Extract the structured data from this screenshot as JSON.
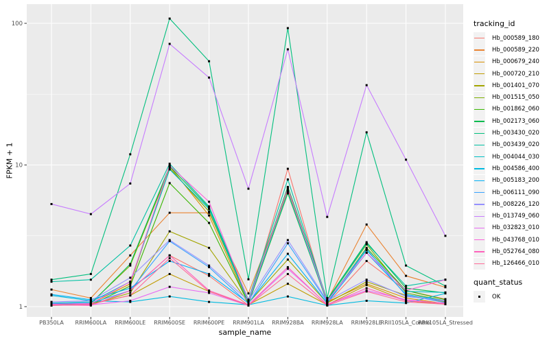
{
  "chart_data": {
    "type": "line",
    "xlabel": "sample_name",
    "ylabel": "FPKM + 1",
    "y_scale": "log10",
    "y_ticks": [
      1,
      10,
      100
    ],
    "y_minor_ticks": [
      3.1623,
      31.623
    ],
    "grid": true,
    "panel_bg": "#EBEBEB",
    "grid_color": "#FFFFFF",
    "tick_label_color": "#4D4D4D",
    "point_marker": "black-square",
    "categories": [
      "PB350LA",
      "RRIM600LA",
      "RRIM600LE",
      "RRIM600SE",
      "RRIM600PE",
      "RRIM901LA",
      "RRIM928BA",
      "RRIM928LA",
      "RRIM928LE",
      "RRII105LA_Control",
      "RRII105LA_Stressed"
    ],
    "series": [
      {
        "name": "Hb_000589_180",
        "color": "#F8766D",
        "values": [
          1.05,
          1.02,
          1.3,
          2.3,
          1.65,
          1.02,
          9.4,
          1.05,
          2.1,
          1.3,
          1.13
        ]
      },
      {
        "name": "Hb_000589_220",
        "color": "#EA8331",
        "values": [
          1.32,
          1.15,
          2.3,
          4.6,
          4.6,
          1.24,
          6.5,
          1.1,
          3.8,
          1.65,
          1.37
        ]
      },
      {
        "name": "Hb_000679_240",
        "color": "#D89000",
        "values": [
          1.05,
          1.05,
          1.45,
          9.8,
          4.4,
          1.05,
          6.6,
          1.08,
          1.45,
          1.15,
          1.05
        ]
      },
      {
        "name": "Hb_000720_210",
        "color": "#C09B00",
        "values": [
          1.02,
          1.05,
          1.2,
          1.7,
          1.28,
          1.03,
          1.45,
          1.03,
          1.42,
          1.1,
          1.04
        ]
      },
      {
        "name": "Hb_001401_070",
        "color": "#A3A500",
        "values": [
          1.03,
          1.04,
          1.25,
          3.4,
          2.6,
          1.06,
          2.15,
          1.06,
          1.5,
          1.2,
          1.08
        ]
      },
      {
        "name": "Hb_001515_050",
        "color": "#7CAE00",
        "values": [
          1.04,
          1.06,
          1.95,
          9.5,
          4.7,
          1.08,
          6.9,
          1.1,
          2.75,
          1.25,
          1.1
        ]
      },
      {
        "name": "Hb_001862_060",
        "color": "#39B600",
        "values": [
          1.02,
          1.03,
          1.4,
          7.45,
          3.9,
          1.05,
          6.3,
          1.07,
          2.6,
          1.3,
          1.12
        ]
      },
      {
        "name": "Hb_002173_060",
        "color": "#00BB4E",
        "values": [
          1.03,
          1.05,
          2.0,
          9.8,
          5.0,
          1.1,
          7.0,
          1.12,
          2.85,
          1.35,
          1.25
        ]
      },
      {
        "name": "Hb_003430_020",
        "color": "#00BF7D",
        "values": [
          1.55,
          1.7,
          11.9,
          108.0,
          54.0,
          1.56,
          92.5,
          1.15,
          17.0,
          1.95,
          1.4
        ]
      },
      {
        "name": "Hb_003439_020",
        "color": "#00C1A3",
        "values": [
          1.5,
          1.55,
          2.7,
          10.2,
          5.1,
          1.12,
          7.9,
          1.1,
          2.8,
          1.4,
          1.55
        ]
      },
      {
        "name": "Hb_004044_030",
        "color": "#00BFC4",
        "values": [
          1.06,
          1.08,
          1.5,
          9.3,
          4.9,
          1.07,
          6.4,
          1.08,
          2.5,
          1.28,
          1.26
        ]
      },
      {
        "name": "Hb_004586_400",
        "color": "#00BAE0",
        "values": [
          1.2,
          1.1,
          1.08,
          1.18,
          1.08,
          1.03,
          1.18,
          1.02,
          1.1,
          1.06,
          1.24
        ]
      },
      {
        "name": "Hb_005183_200",
        "color": "#00B0F6",
        "values": [
          1.22,
          1.12,
          1.35,
          2.1,
          1.7,
          1.06,
          2.36,
          1.06,
          2.4,
          1.22,
          1.1
        ]
      },
      {
        "name": "Hb_006111_090",
        "color": "#35A2FF",
        "values": [
          1.05,
          1.06,
          1.3,
          2.9,
          1.9,
          1.05,
          2.8,
          1.08,
          2.55,
          1.2,
          1.07
        ]
      },
      {
        "name": "Hb_008226_120",
        "color": "#9590FF",
        "values": [
          1.08,
          1.1,
          1.6,
          2.95,
          1.95,
          1.1,
          2.95,
          1.1,
          1.55,
          1.18,
          1.1
        ]
      },
      {
        "name": "Hb_013749_060",
        "color": "#C77CFF",
        "values": [
          5.3,
          4.5,
          7.4,
          71.6,
          41.4,
          6.8,
          65.5,
          4.3,
          36.6,
          10.9,
          3.16
        ]
      },
      {
        "name": "Hb_032823_010",
        "color": "#E76BF3",
        "values": [
          1.02,
          1.03,
          1.1,
          1.38,
          1.25,
          1.02,
          1.85,
          1.04,
          1.3,
          1.12,
          1.05
        ]
      },
      {
        "name": "Hb_043768_010",
        "color": "#FA62DB",
        "values": [
          1.04,
          1.05,
          1.5,
          9.9,
          5.5,
          1.1,
          6.8,
          1.1,
          2.4,
          1.3,
          1.55
        ]
      },
      {
        "name": "Hb_052764_080",
        "color": "#FF62BC",
        "values": [
          1.03,
          1.02,
          1.3,
          2.3,
          1.3,
          1.03,
          1.9,
          1.03,
          1.35,
          1.1,
          1.06
        ]
      },
      {
        "name": "Hb_126466_010",
        "color": "#FF6A98",
        "values": [
          1.02,
          1.04,
          1.2,
          2.2,
          1.28,
          1.02,
          1.7,
          1.02,
          1.28,
          1.08,
          1.04
        ]
      }
    ],
    "legend": {
      "tracking_title": "tracking_id",
      "quant_title": "quant_status",
      "quant_label": "OK"
    }
  }
}
